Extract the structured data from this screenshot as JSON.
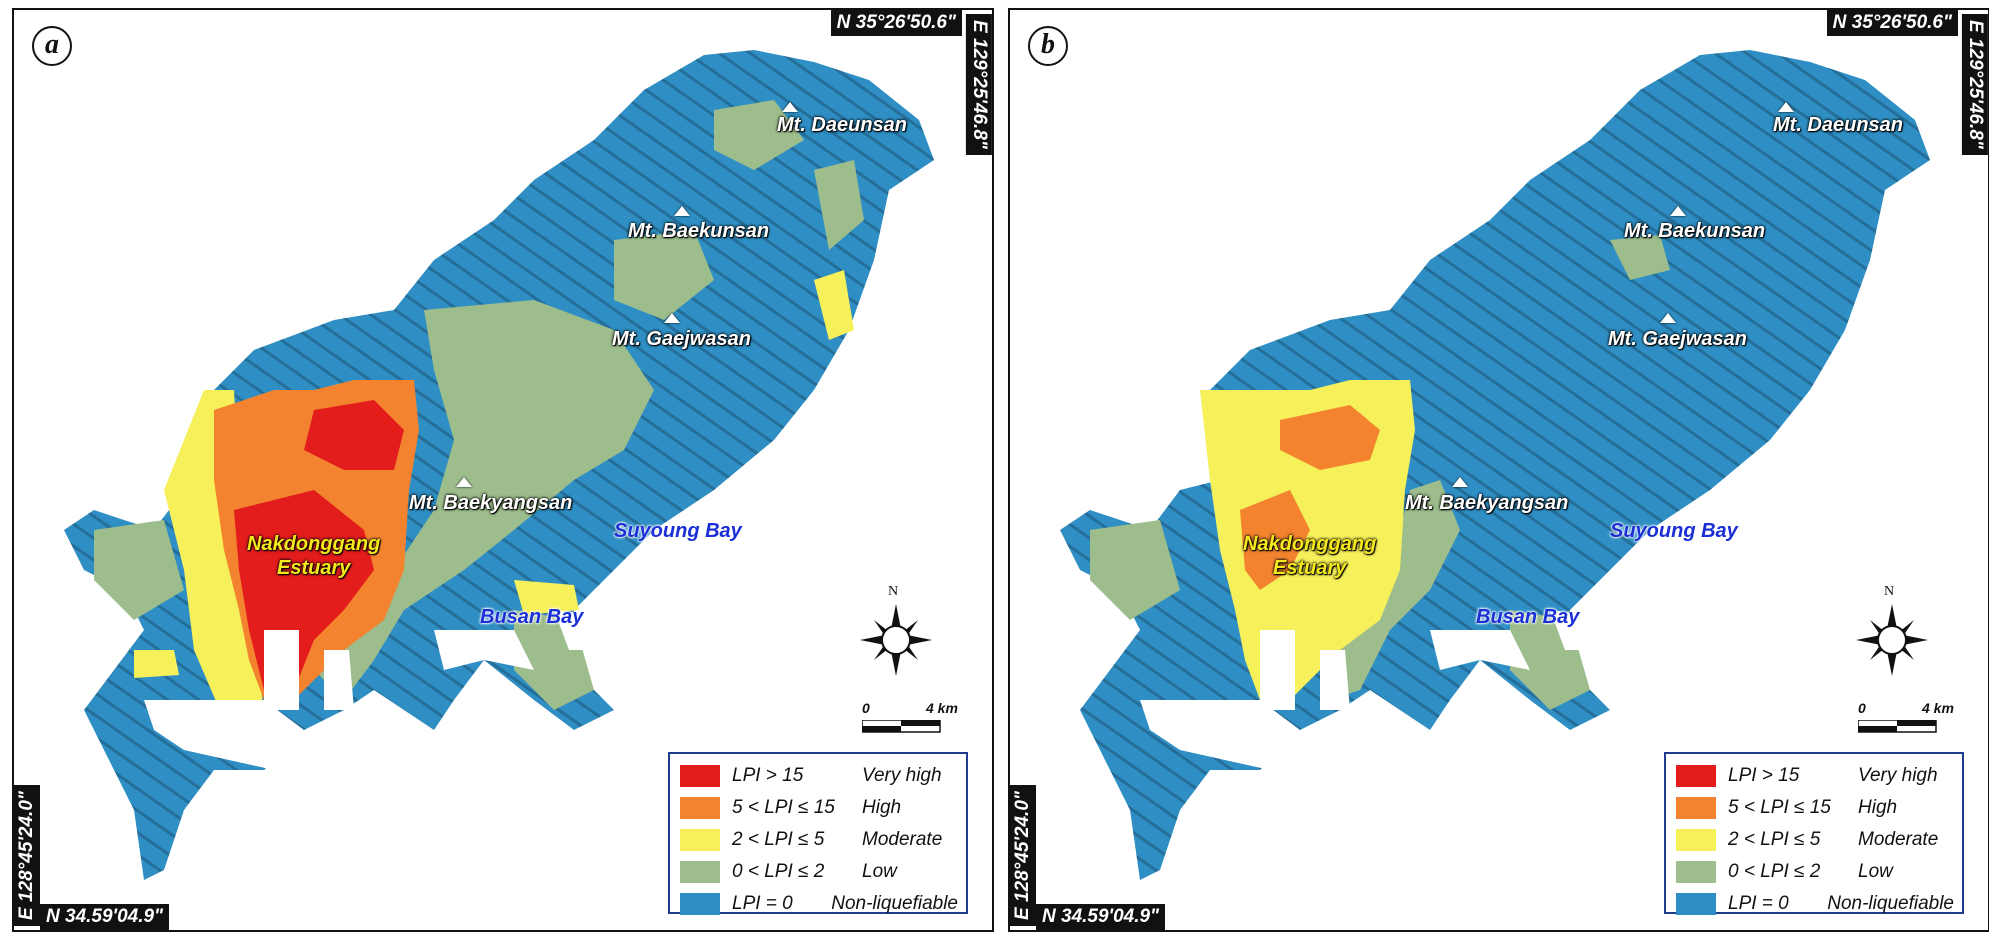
{
  "coordinates": {
    "top_lat": "N 35°26'50.6\"",
    "right_lon": "E 129°25'46.8\"",
    "bottom_lat": "N 34.59'04.9\"",
    "left_lon": "E 128°45'24.0\""
  },
  "labels": {
    "mt_daeunsan": "Mt. Daeunsan",
    "mt_baekunsan": "Mt. Baekunsan",
    "mt_gaejwasan": "Mt. Gaejwasan",
    "mt_baekyangsan": "Mt. Baekyangsan",
    "suyoung_bay": "Suyoung Bay",
    "busan_bay": "Busan Bay",
    "estuary_line1": "Nakdonggang",
    "estuary_line2": "Estuary"
  },
  "compass_north": "N",
  "scale": {
    "start": "0",
    "end": "4 km"
  },
  "legend": [
    {
      "range": "LPI > 15",
      "class": "Very high",
      "color": "#e31c1c"
    },
    {
      "range": "5 < LPI ≤ 15",
      "class": "High",
      "color": "#f3832f"
    },
    {
      "range": "2 < LPI ≤ 5",
      "class": "Moderate",
      "color": "#f6f05a"
    },
    {
      "range": "0 < LPI ≤ 2",
      "class": "Low",
      "color": "#9dbd8c"
    },
    {
      "range": "LPI = 0",
      "class": "Non-liquefiable",
      "color": "#2f8fc4"
    }
  ],
  "panels": [
    {
      "letter": "a",
      "western_zone_level": "Very high / High"
    },
    {
      "letter": "b",
      "western_zone_level": "High / Moderate"
    }
  ]
}
